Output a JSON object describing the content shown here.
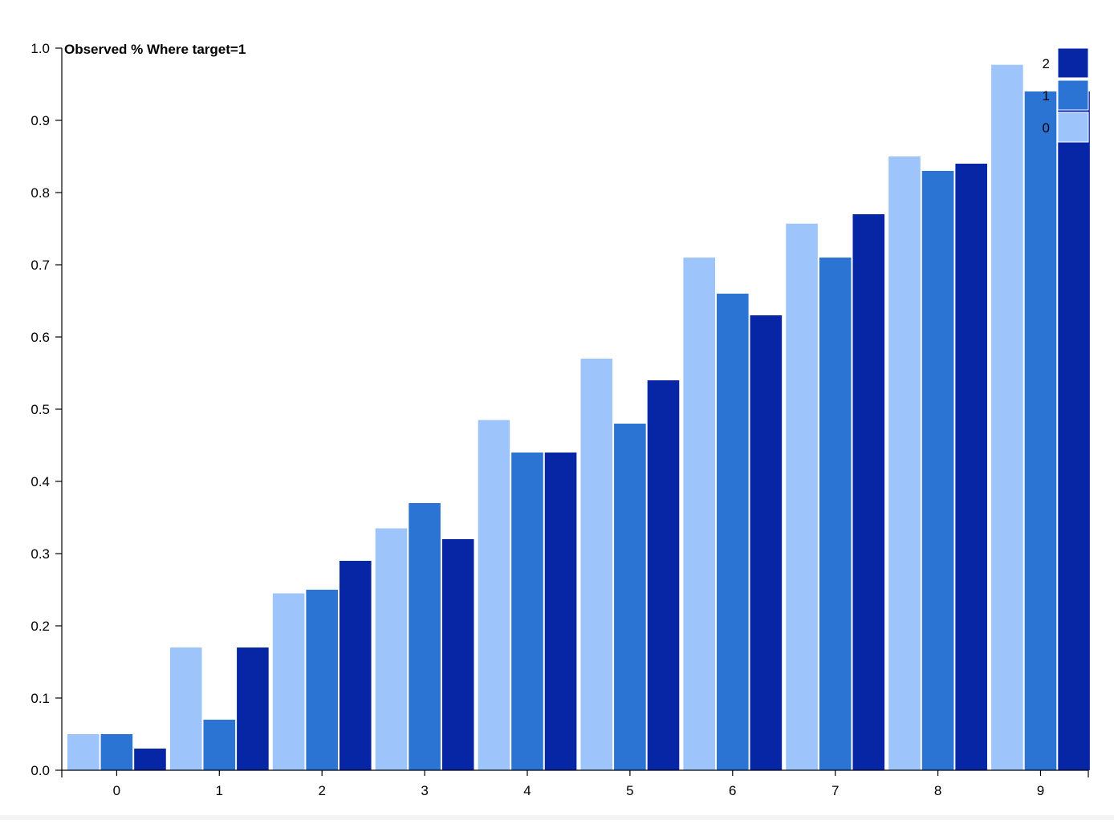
{
  "chart_data": {
    "type": "bar",
    "title": "Observed % Where target=1",
    "xlabel": "",
    "ylabel": "",
    "categories": [
      "0",
      "1",
      "2",
      "3",
      "4",
      "5",
      "6",
      "7",
      "8",
      "9"
    ],
    "series": [
      {
        "name": "0",
        "color": "#9dc5fb",
        "values": [
          0.05,
          0.17,
          0.245,
          0.335,
          0.485,
          0.57,
          0.71,
          0.757,
          0.85,
          0.977
        ]
      },
      {
        "name": "1",
        "color": "#2b74d4",
        "values": [
          0.05,
          0.07,
          0.25,
          0.37,
          0.44,
          0.48,
          0.66,
          0.71,
          0.83,
          0.94
        ]
      },
      {
        "name": "2",
        "color": "#0726a5",
        "values": [
          0.03,
          0.17,
          0.29,
          0.32,
          0.44,
          0.54,
          0.63,
          0.77,
          0.84,
          0.94
        ]
      }
    ],
    "ylim": [
      0,
      1
    ],
    "yticks": [
      "0.0",
      "0.1",
      "0.2",
      "0.3",
      "0.4",
      "0.5",
      "0.6",
      "0.7",
      "0.8",
      "0.9",
      "1.0"
    ],
    "legend_position": "top-right",
    "legend_order": [
      "2",
      "1",
      "0"
    ],
    "grid": false
  }
}
